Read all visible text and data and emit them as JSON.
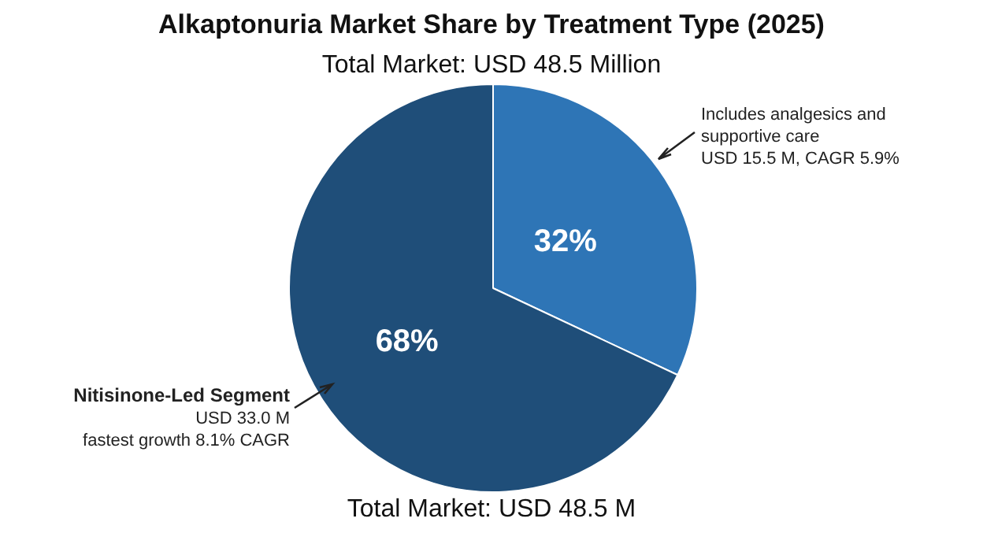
{
  "chart_data": {
    "type": "pie",
    "title": "Alkaptonuria Market Share by Treatment Type (2025)",
    "subtitle": "Total Market: USD 48.5 Million",
    "categories": [
      null,
      "Nitisinone-Led Segment"
    ],
    "values": [
      32,
      68
    ],
    "colors": [
      "#2e75b6",
      "#1f4e79"
    ],
    "value_labels": [
      "32%",
      "68%"
    ],
    "annotations": [
      "Includes analgesics and\nsupportive care\nUSD 15.5 M, CAGR 5.9%",
      "USD 33.0 M\nfastest growth 8.1% CAGR",
      "Total Market: USD 48.5 M"
    ],
    "legend": false
  }
}
